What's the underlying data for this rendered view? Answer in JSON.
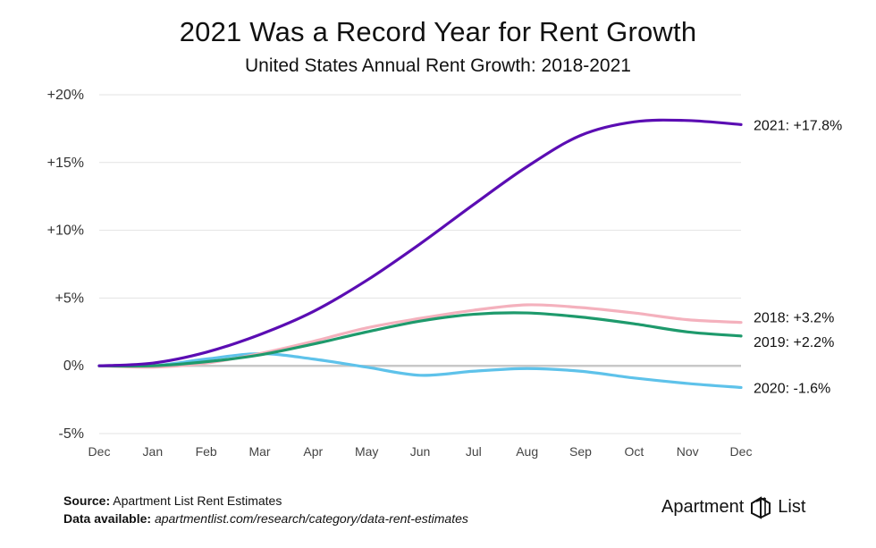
{
  "header": {
    "title": "2021 Was a Record Year for Rent Growth",
    "subtitle": "United States Annual Rent Growth: 2018-2021"
  },
  "footer": {
    "source_label": "Source:",
    "source_text": "Apartment List Rent Estimates",
    "data_label": "Data available:",
    "data_text": "apartmentlist.com/research/category/data-rent-estimates"
  },
  "brand": {
    "left_text": "Apartment",
    "right_text": "List",
    "logo_icon": "apartment-list-logo-icon"
  },
  "chart_data": {
    "type": "line",
    "title": "2021 Was a Record Year for Rent Growth",
    "subtitle": "United States Annual Rent Growth: 2018-2021",
    "x": [
      "Dec",
      "Jan",
      "Feb",
      "Mar",
      "Apr",
      "May",
      "Jun",
      "Jul",
      "Aug",
      "Sep",
      "Oct",
      "Nov",
      "Dec"
    ],
    "ylim": [
      -5,
      20
    ],
    "yticks": [
      -5,
      0,
      5,
      10,
      15,
      20
    ],
    "ytick_labels": [
      "-5%",
      "0%",
      "+5%",
      "+10%",
      "+15%",
      "+20%"
    ],
    "grid": "horizontal",
    "series": [
      {
        "name": "2021",
        "end_label": "2021: +17.8%",
        "color": "#5b0db3",
        "values": [
          0,
          0.2,
          1.0,
          2.3,
          4.0,
          6.3,
          9.0,
          11.9,
          14.7,
          17.0,
          18.0,
          18.1,
          17.8
        ]
      },
      {
        "name": "2018",
        "end_label": "2018: +3.2%",
        "color": "#f4b1bd",
        "values": [
          0,
          -0.1,
          0.2,
          0.9,
          1.8,
          2.8,
          3.5,
          4.1,
          4.5,
          4.3,
          3.9,
          3.4,
          3.2
        ]
      },
      {
        "name": "2019",
        "end_label": "2019: +2.2%",
        "color": "#1e9a6c",
        "values": [
          0,
          0,
          0.3,
          0.8,
          1.6,
          2.5,
          3.3,
          3.8,
          3.9,
          3.6,
          3.1,
          2.5,
          2.2
        ]
      },
      {
        "name": "2020",
        "end_label": "2020: -1.6%",
        "color": "#5ec2ea",
        "values": [
          0,
          0,
          0.5,
          0.9,
          0.5,
          -0.1,
          -0.7,
          -0.4,
          -0.2,
          -0.4,
          -0.9,
          -1.3,
          -1.6
        ]
      }
    ],
    "zero_line_color": "#c8c8c8"
  }
}
